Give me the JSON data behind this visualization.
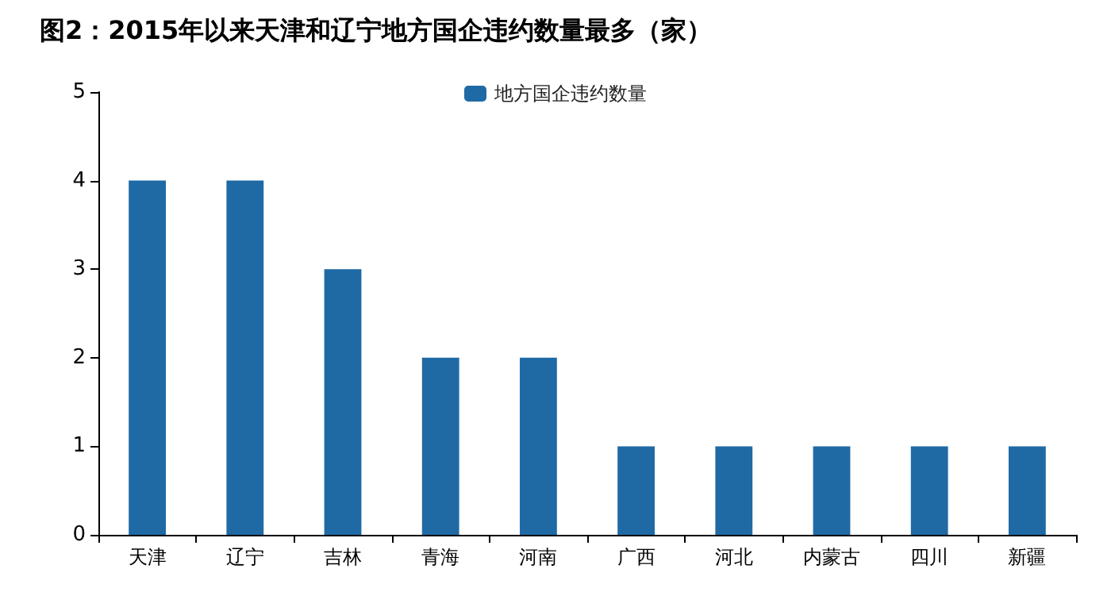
{
  "chart_data": {
    "type": "bar",
    "title": "图2：2015年以来天津和辽宁地方国企违约数量最多（家）",
    "categories": [
      "天津",
      "辽宁",
      "吉林",
      "青海",
      "河南",
      "广西",
      "河北",
      "内蒙古",
      "四川",
      "新疆"
    ],
    "series": [
      {
        "name": "地方国企违约数量",
        "color": "#1f6aa5",
        "values": [
          4,
          4,
          3,
          2,
          2,
          1,
          1,
          1,
          1,
          1
        ]
      }
    ],
    "ylim": [
      0,
      5
    ],
    "yticks": [
      0,
      1,
      2,
      3,
      4,
      5
    ],
    "grid": false,
    "legend": "top"
  }
}
